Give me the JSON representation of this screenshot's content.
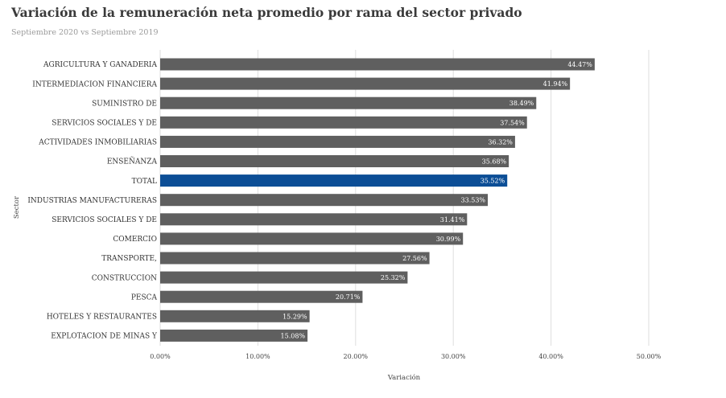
{
  "chart_data": {
    "type": "bar",
    "orientation": "horizontal",
    "title": "Variación de la remuneración neta promedio por rama del sector privado",
    "subtitle": "Septiembre 2020 vs Septiembre 2019",
    "xlabel": "Variación",
    "ylabel": "Sector",
    "xlim": [
      0,
      0.5
    ],
    "xticks": [
      "0.00%",
      "10.00%",
      "20.00%",
      "30.00%",
      "40.00%",
      "50.00%"
    ],
    "grid": true,
    "categories": [
      "AGRICULTURA Y GANADERIA",
      "INTERMEDIACION FINANCIERA",
      "SUMINISTRO DE",
      "SERVICIOS SOCIALES Y DE",
      "ACTIVIDADES INMOBILIARIAS",
      "ENSEÑANZA",
      "TOTAL",
      "INDUSTRIAS MANUFACTURERAS",
      "SERVICIOS SOCIALES Y DE",
      "COMERCIO",
      "TRANSPORTE,",
      "CONSTRUCCION",
      "PESCA",
      "HOTELES Y RESTAURANTES",
      "EXPLOTACION DE MINAS Y"
    ],
    "values": [
      0.4447,
      0.4194,
      0.3849,
      0.3754,
      0.3632,
      0.3568,
      0.3552,
      0.3353,
      0.3141,
      0.3099,
      0.2756,
      0.2532,
      0.2071,
      0.1529,
      0.1508
    ],
    "labels": [
      "44.47%",
      "41.94%",
      "38.49%",
      "37.54%",
      "36.32%",
      "35.68%",
      "35.52%",
      "33.53%",
      "31.41%",
      "30.99%",
      "27.56%",
      "25.32%",
      "20.71%",
      "15.29%",
      "15.08%"
    ],
    "colors": {
      "bar": "#5f5f5f",
      "highlight": "#0c4e96",
      "highlight_category": "TOTAL",
      "grid": "#dedede"
    }
  }
}
